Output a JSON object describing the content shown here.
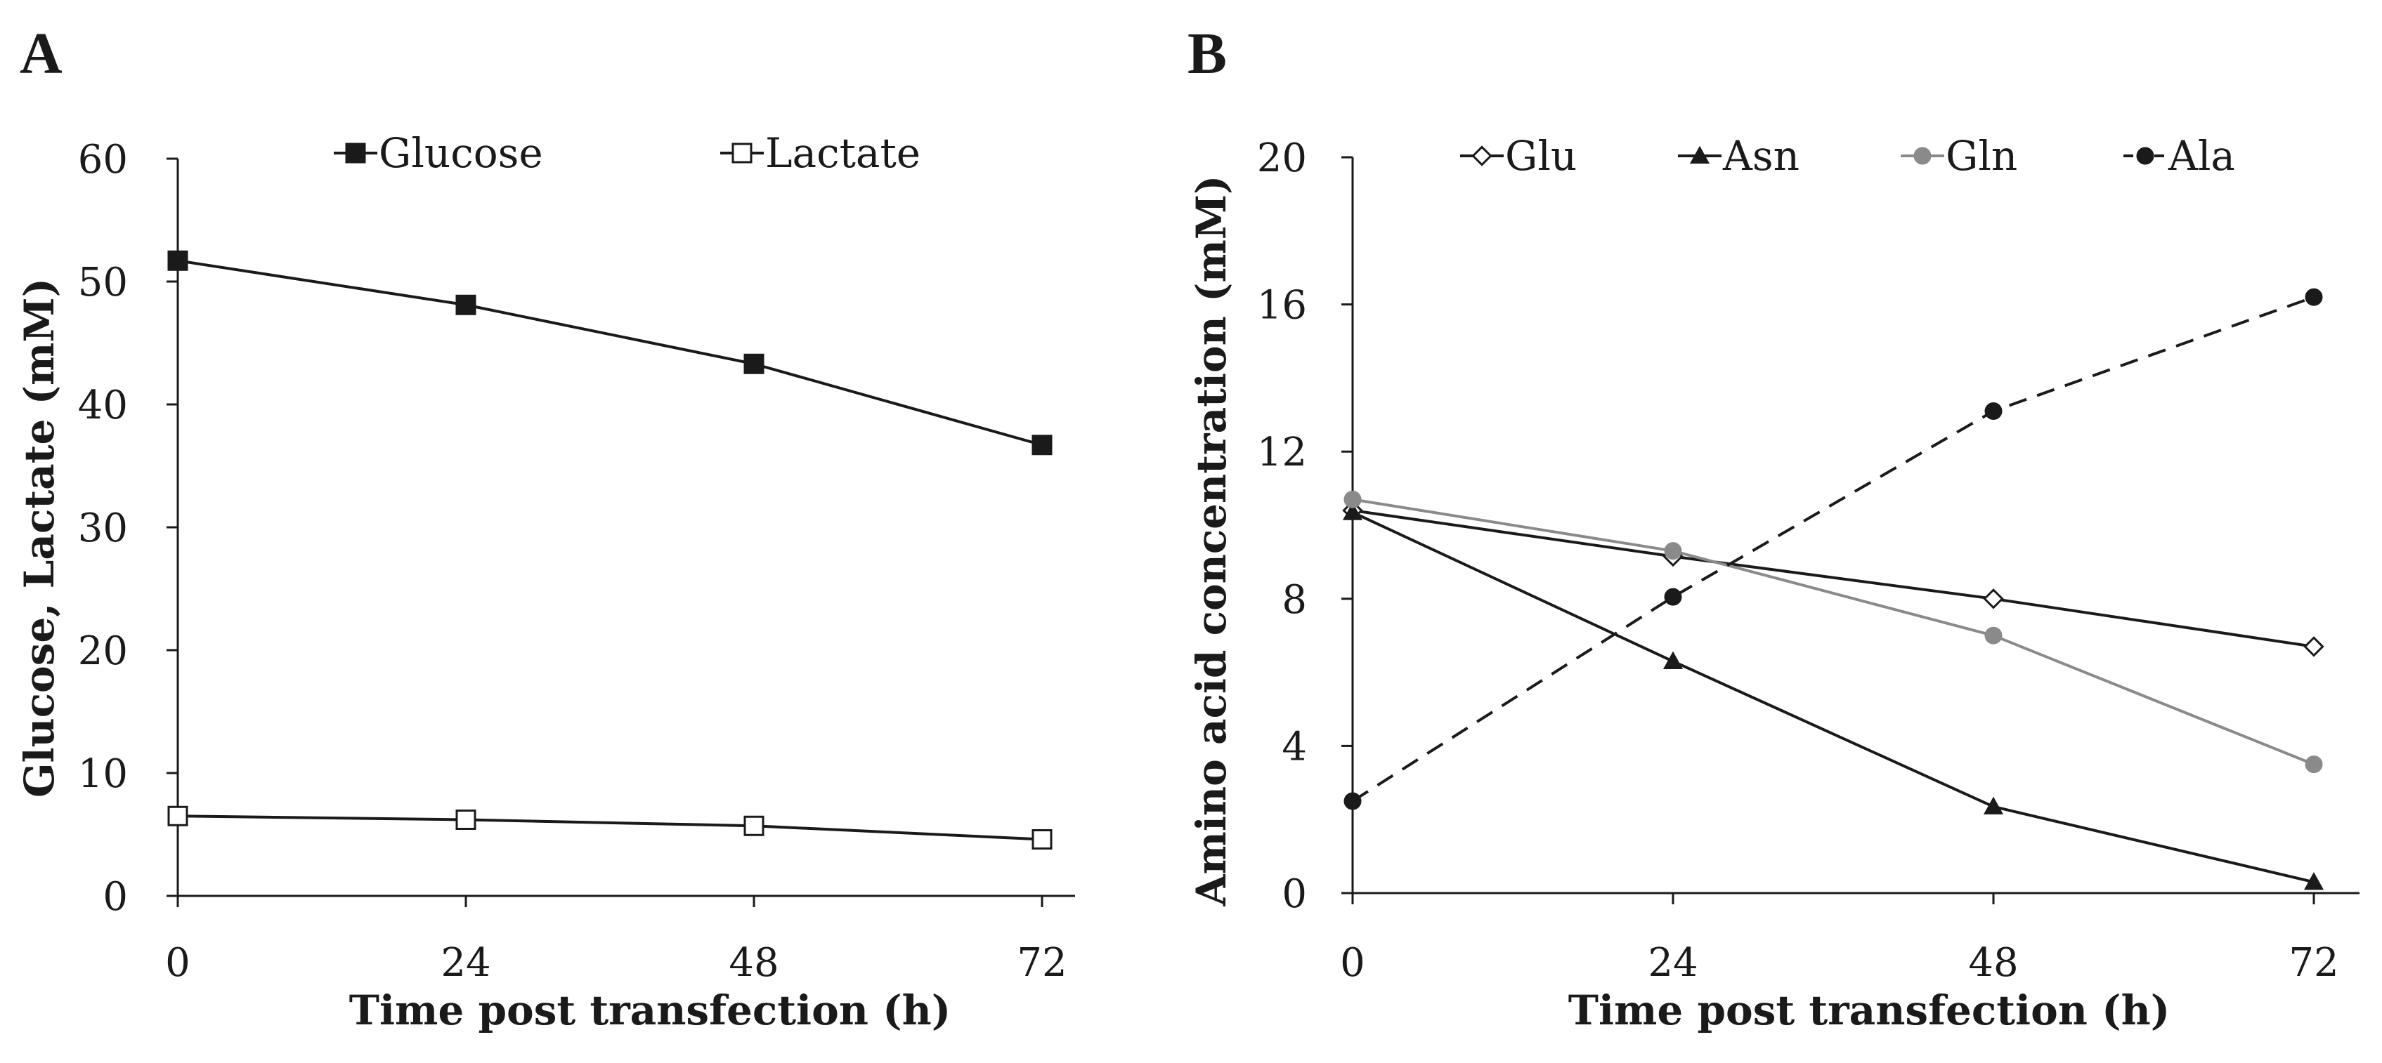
{
  "figure": {
    "panels": [
      {
        "id": "A",
        "label": "A"
      },
      {
        "id": "B",
        "label": "B"
      }
    ]
  },
  "colors": {
    "axis": "#1a1a1a",
    "black_series": "#1a1a1a",
    "gray_series": "#8a8a8a",
    "hollow_fill": "#ffffff"
  },
  "chart_data": [
    {
      "panel": "A",
      "type": "line",
      "title": "",
      "xlabel": "Time post transfection (h)",
      "ylabel": "Glucose, Lactate (mM)",
      "x": [
        0,
        24,
        48,
        72
      ],
      "xticks": [
        "0",
        "24",
        "48",
        "72"
      ],
      "xlim": [
        0,
        75
      ],
      "ylim": [
        0,
        60
      ],
      "yticks": [
        "0",
        "10",
        "20",
        "30",
        "40",
        "50",
        "60"
      ],
      "grid": false,
      "legend_position": "top",
      "series": [
        {
          "name": "Glucose",
          "values": [
            51.7,
            48.1,
            43.3,
            36.7
          ],
          "marker": "square-filled",
          "color": "#1a1a1a",
          "dash": "solid"
        },
        {
          "name": "Lactate",
          "values": [
            6.5,
            6.2,
            5.7,
            4.6
          ],
          "marker": "square-open",
          "color": "#1a1a1a",
          "dash": "solid"
        }
      ]
    },
    {
      "panel": "B",
      "type": "line",
      "title": "",
      "xlabel": "Time post transfection (h)",
      "ylabel": "Amino acid concentration (mM)",
      "x": [
        0,
        24,
        48,
        72
      ],
      "xticks": [
        "0",
        "24",
        "48",
        "72"
      ],
      "xlim": [
        0,
        75
      ],
      "ylim": [
        0,
        20
      ],
      "yticks": [
        "0",
        "4",
        "8",
        "12",
        "16",
        "20"
      ],
      "grid": false,
      "legend_position": "top",
      "series": [
        {
          "name": "Glu",
          "values": [
            10.4,
            9.15,
            8.0,
            6.7
          ],
          "marker": "diamond-open",
          "color": "#1a1a1a",
          "dash": "solid"
        },
        {
          "name": "Asn",
          "values": [
            10.35,
            6.3,
            2.35,
            0.3
          ],
          "marker": "triangle-filled",
          "color": "#1a1a1a",
          "dash": "solid"
        },
        {
          "name": "Gln",
          "values": [
            10.7,
            9.3,
            7.0,
            3.5
          ],
          "marker": "circle-filled",
          "color": "#8a8a8a",
          "dash": "solid"
        },
        {
          "name": "Ala",
          "values": [
            2.5,
            8.05,
            13.1,
            16.2
          ],
          "marker": "circle-filled",
          "color": "#1a1a1a",
          "dash": "dashed"
        }
      ]
    }
  ]
}
